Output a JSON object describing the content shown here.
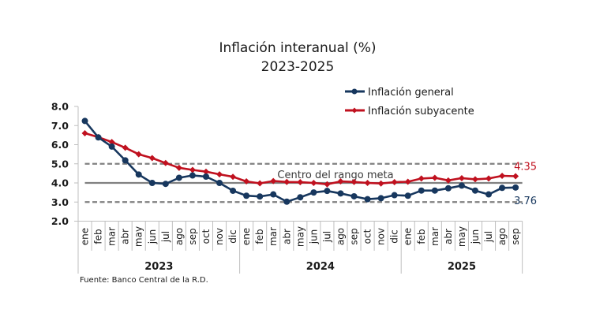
{
  "chart_data": {
    "type": "line",
    "title": "Inflación interanual (%)",
    "subtitle": "2023-2025",
    "xlabel": "",
    "ylabel": "",
    "ylim": [
      2.0,
      8.0
    ],
    "yticks": [
      "8.0",
      "7.0",
      "6.0",
      "5.0",
      "4.0",
      "3.0",
      "2.0"
    ],
    "ytick_values": [
      8,
      7,
      6,
      5,
      4,
      3,
      2
    ],
    "grid": false,
    "legend_position": "top-right",
    "months": [
      "ene",
      "feb",
      "mar",
      "abr",
      "may",
      "jun",
      "jul",
      "ago",
      "sep",
      "oct",
      "nov",
      "dic",
      "ene",
      "feb",
      "mar",
      "abr",
      "may",
      "jun",
      "jul",
      "ago",
      "sep",
      "oct",
      "nov",
      "dic",
      "ene",
      "feb",
      "mar",
      "abr",
      "may",
      "jun",
      "jul",
      "ago",
      "sep"
    ],
    "years": [
      {
        "label": "2023",
        "count": 12
      },
      {
        "label": "2024",
        "count": 12
      },
      {
        "label": "2025",
        "count": 9
      }
    ],
    "series": [
      {
        "name": "Inflación general",
        "color": "#17375e",
        "marker": "circle",
        "values": [
          7.24,
          6.38,
          5.9,
          5.18,
          4.44,
          4.0,
          3.95,
          4.27,
          4.39,
          4.33,
          4.0,
          3.59,
          3.33,
          3.29,
          3.4,
          3.02,
          3.25,
          3.5,
          3.58,
          3.45,
          3.3,
          3.15,
          3.2,
          3.36,
          3.33,
          3.6,
          3.6,
          3.72,
          3.86,
          3.6,
          3.4,
          3.74,
          3.76
        ],
        "end_label": "3.76"
      },
      {
        "name": "Inflación subyacente",
        "color": "#c0111f",
        "marker": "diamond",
        "values": [
          6.6,
          6.39,
          6.14,
          5.84,
          5.5,
          5.3,
          5.04,
          4.79,
          4.68,
          4.59,
          4.45,
          4.32,
          4.08,
          3.98,
          4.1,
          4.05,
          4.04,
          4.0,
          3.93,
          4.08,
          4.05,
          4.0,
          3.97,
          4.04,
          4.06,
          4.23,
          4.27,
          4.13,
          4.25,
          4.19,
          4.23,
          4.37,
          4.35
        ],
        "end_label": "4.35"
      }
    ],
    "reference_lines": [
      {
        "name": "upper-target",
        "value": 5.0,
        "style": "dashed",
        "color": "#808080"
      },
      {
        "name": "target-center",
        "value": 4.0,
        "style": "solid",
        "color": "#808080"
      },
      {
        "name": "lower-target",
        "value": 3.0,
        "style": "dashed",
        "color": "#808080"
      }
    ],
    "annotation": "Centro del rango meta",
    "source": "Fuente: Banco Central de la R.D."
  }
}
